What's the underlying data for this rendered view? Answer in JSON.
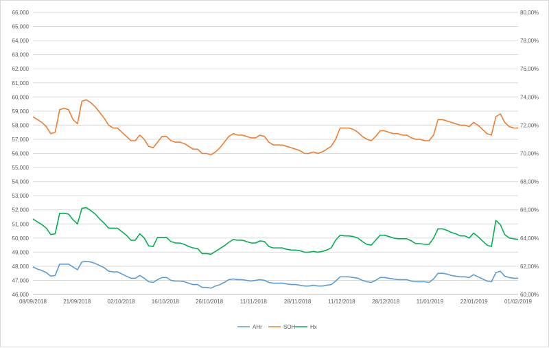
{
  "chart_data": {
    "type": "line",
    "title": "",
    "grid": true,
    "legend_position": "bottom",
    "x_tick_labels": [
      "08/09/2018",
      "21/09/2018",
      "02/10/2018",
      "16/10/2018",
      "26/10/2018",
      "11/11/2018",
      "28/11/2018",
      "11/12/2018",
      "28/12/2018",
      "11/01/2019",
      "22/01/2019",
      "01/02/2019"
    ],
    "y_left": {
      "min": 46000,
      "max": 66000,
      "step": 1000,
      "tick_labels": [
        "46,000",
        "47,000",
        "48,000",
        "49,000",
        "50,000",
        "51,000",
        "52,000",
        "53,000",
        "54,000",
        "55,000",
        "56,000",
        "57,000",
        "58,000",
        "59,000",
        "60,000",
        "61,000",
        "62,000",
        "63,000",
        "64,000",
        "65,000",
        "66,000"
      ]
    },
    "y_right": {
      "min": 60,
      "max": 80,
      "step": 2,
      "tick_labels": [
        "60,00%",
        "62,00%",
        "64,00%",
        "66,00%",
        "68,00%",
        "70,00%",
        "72,00%",
        "74,00%",
        "76,00%",
        "78,00%",
        "80,00%"
      ]
    },
    "series": [
      {
        "name": "AHr",
        "color": "#5b9bd5",
        "axis": "left",
        "values": [
          47950,
          47800,
          47700,
          47550,
          47300,
          47350,
          48150,
          48150,
          48150,
          47950,
          47750,
          48300,
          48350,
          48300,
          48200,
          48050,
          47900,
          47650,
          47600,
          47600,
          47450,
          47300,
          47150,
          47150,
          47350,
          47150,
          46900,
          46850,
          47050,
          47200,
          47200,
          47000,
          46950,
          46950,
          46900,
          46800,
          46700,
          46700,
          46500,
          46500,
          46450,
          46600,
          46700,
          46850,
          47050,
          47100,
          47050,
          47050,
          47000,
          46950,
          47000,
          47050,
          47000,
          46850,
          46800,
          46800,
          46800,
          46750,
          46700,
          46700,
          46650,
          46600,
          46600,
          46650,
          46600,
          46600,
          46650,
          46700,
          46950,
          47250,
          47250,
          47250,
          47200,
          47150,
          47000,
          46900,
          46850,
          47000,
          47200,
          47200,
          47150,
          47100,
          47050,
          47050,
          47050,
          46950,
          46900,
          46900,
          46900,
          46850,
          47100,
          47500,
          47500,
          47450,
          47350,
          47300,
          47250,
          47250,
          47200,
          47400,
          47250,
          47100,
          46950,
          46900,
          47550,
          47650,
          47300,
          47200,
          47150,
          47150
        ]
      },
      {
        "name": "SOH",
        "color": "#ed7d31",
        "axis": "right",
        "values": [
          72.6,
          72.4,
          72.2,
          71.9,
          71.4,
          71.5,
          73.1,
          73.2,
          73.1,
          72.4,
          72.1,
          73.7,
          73.8,
          73.6,
          73.3,
          72.9,
          72.5,
          72.0,
          71.8,
          71.8,
          71.5,
          71.2,
          70.9,
          70.9,
          71.3,
          71.0,
          70.5,
          70.4,
          70.8,
          71.2,
          71.2,
          70.9,
          70.8,
          70.8,
          70.7,
          70.5,
          70.3,
          70.3,
          70.0,
          70.0,
          69.9,
          70.1,
          70.4,
          70.8,
          71.2,
          71.4,
          71.3,
          71.3,
          71.2,
          71.1,
          71.1,
          71.3,
          71.2,
          70.8,
          70.6,
          70.6,
          70.6,
          70.5,
          70.4,
          70.3,
          70.2,
          70.0,
          70.0,
          70.1,
          70.0,
          70.1,
          70.3,
          70.5,
          71.0,
          71.8,
          71.8,
          71.8,
          71.7,
          71.5,
          71.2,
          71.0,
          70.9,
          71.2,
          71.6,
          71.6,
          71.5,
          71.4,
          71.4,
          71.3,
          71.3,
          71.1,
          71.0,
          71.0,
          70.9,
          70.9,
          71.3,
          72.4,
          72.4,
          72.3,
          72.2,
          72.1,
          72.0,
          72.0,
          71.9,
          72.2,
          72.0,
          71.7,
          71.4,
          71.3,
          72.6,
          72.8,
          72.2,
          71.9,
          71.8,
          71.8
        ]
      },
      {
        "name": "Hx",
        "color": "#00b050",
        "axis": "left",
        "values": [
          51350,
          51150,
          50950,
          50700,
          50250,
          50300,
          51750,
          51750,
          51700,
          51300,
          51000,
          52100,
          52150,
          51950,
          51700,
          51350,
          51050,
          50700,
          50700,
          50700,
          50450,
          50200,
          49850,
          49850,
          50300,
          50000,
          49450,
          49400,
          50050,
          50050,
          50050,
          49750,
          49650,
          49650,
          49550,
          49400,
          49300,
          49250,
          48900,
          48900,
          48850,
          49050,
          49250,
          49450,
          49700,
          49900,
          49850,
          49850,
          49750,
          49650,
          49650,
          49800,
          49750,
          49400,
          49300,
          49300,
          49300,
          49200,
          49150,
          49150,
          49100,
          49000,
          49000,
          49050,
          49000,
          49050,
          49150,
          49300,
          49850,
          50200,
          50150,
          50150,
          50100,
          50000,
          49750,
          49550,
          49500,
          49850,
          50200,
          50200,
          50100,
          50000,
          49950,
          49950,
          49950,
          49800,
          49600,
          49600,
          49550,
          49550,
          50000,
          50650,
          50650,
          50550,
          50400,
          50300,
          50150,
          50150,
          50000,
          50350,
          50100,
          49800,
          49500,
          49400,
          51250,
          50950,
          50250,
          50000,
          49950,
          49900
        ]
      }
    ]
  }
}
